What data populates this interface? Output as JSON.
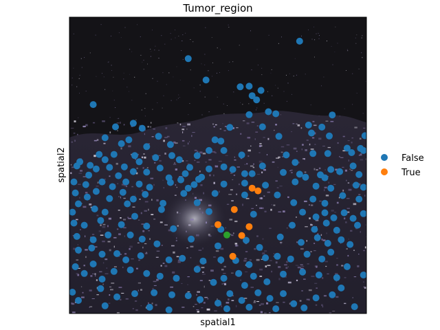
{
  "chart_data": {
    "type": "scatter",
    "title": "Tumor_region",
    "xlabel": "spatial1",
    "ylabel": "spatial2",
    "background": "dark-field tissue image (dark grey, speckled purple/white texture)",
    "legend_position": "right",
    "legend": [
      {
        "label": "False",
        "color": "#1f77b4"
      },
      {
        "label": "True",
        "color": "#ff7f0e"
      }
    ],
    "extra_mark_color": "#2ca02c",
    "xlim": [
      0,
      100
    ],
    "ylim": [
      0,
      100
    ],
    "series": [
      {
        "name": "False",
        "color": "#1f77b4",
        "points": [
          [
            77.5,
            91.9
          ],
          [
            40.0,
            86.0
          ],
          [
            46.0,
            78.8
          ],
          [
            57.5,
            76.5
          ],
          [
            60.5,
            76.7
          ],
          [
            64.5,
            75.3
          ],
          [
            61.5,
            73.5
          ],
          [
            63.0,
            72.1
          ],
          [
            8.0,
            70.5
          ],
          [
            67.0,
            68.1
          ],
          [
            69.5,
            67.4
          ],
          [
            60.5,
            67.1
          ],
          [
            80.5,
            63.6
          ],
          [
            85.0,
            62.9
          ],
          [
            81.5,
            60.9
          ],
          [
            87.5,
            59.9
          ],
          [
            99.5,
            60.0
          ],
          [
            98.0,
            55.7
          ],
          [
            20.0,
            58.6
          ],
          [
            17.5,
            57.3
          ],
          [
            26.0,
            56.3
          ],
          [
            34.0,
            57.0
          ],
          [
            51.0,
            58.2
          ],
          [
            52.0,
            55.0
          ],
          [
            10.0,
            53.7
          ],
          [
            15.0,
            53.7
          ],
          [
            22.0,
            53.3
          ],
          [
            29.0,
            52.6
          ],
          [
            34.5,
            53.3
          ],
          [
            43.0,
            53.3
          ],
          [
            47.0,
            55.0
          ],
          [
            58.0,
            53.5
          ],
          [
            73.0,
            53.5
          ],
          [
            82.0,
            54.0
          ],
          [
            87.0,
            54.0
          ],
          [
            95.0,
            54.3
          ],
          [
            99.0,
            55.0
          ],
          [
            3.5,
            51.2
          ],
          [
            7.0,
            50.0
          ],
          [
            12.0,
            51.9
          ],
          [
            18.5,
            49.5
          ],
          [
            23.5,
            51.2
          ],
          [
            30.5,
            49.1
          ],
          [
            37.0,
            51.9
          ],
          [
            40.5,
            49.3
          ],
          [
            52.0,
            49.5
          ],
          [
            65.0,
            49.8
          ],
          [
            76.0,
            51.0
          ],
          [
            88.0,
            48.6
          ],
          [
            95.5,
            49.8
          ],
          [
            2.5,
            49.8
          ],
          [
            6.5,
            46.7
          ],
          [
            9.0,
            48.8
          ],
          [
            13.5,
            49.3
          ],
          [
            16.5,
            46.5
          ],
          [
            21.5,
            47.9
          ],
          [
            26.0,
            47.7
          ],
          [
            33.5,
            45.8
          ],
          [
            39.0,
            47.2
          ],
          [
            44.5,
            46.0
          ],
          [
            47.0,
            48.8
          ],
          [
            55.0,
            48.6
          ],
          [
            59.0,
            47.2
          ],
          [
            61.5,
            47.2
          ],
          [
            72.0,
            47.6
          ],
          [
            79.5,
            46.0
          ],
          [
            86.0,
            45.8
          ],
          [
            91.0,
            47.9
          ],
          [
            97.5,
            46.9
          ],
          [
            1.5,
            44.4
          ],
          [
            5.5,
            43.5
          ],
          [
            11.0,
            44.4
          ],
          [
            14.5,
            42.8
          ],
          [
            19.0,
            44.4
          ],
          [
            23.5,
            43.7
          ],
          [
            27.0,
            42.6
          ],
          [
            34.0,
            44.2
          ],
          [
            40.0,
            42.3
          ],
          [
            42.0,
            43.5
          ],
          [
            52.0,
            43.7
          ],
          [
            59.0,
            44.0
          ],
          [
            66.0,
            43.3
          ],
          [
            76.0,
            44.4
          ],
          [
            83.0,
            43.0
          ],
          [
            88.0,
            42.3
          ],
          [
            96.5,
            43.3
          ],
          [
            99.0,
            42.6
          ],
          [
            2.0,
            40.7
          ],
          [
            6.0,
            39.3
          ],
          [
            9.0,
            41.2
          ],
          [
            13.5,
            38.8
          ],
          [
            18.0,
            40.9
          ],
          [
            21.5,
            38.6
          ],
          [
            25.5,
            40.2
          ],
          [
            31.5,
            37.2
          ],
          [
            38.5,
            40.5
          ],
          [
            43.0,
            37.4
          ],
          [
            49.0,
            40.5
          ],
          [
            59.0,
            40.0
          ],
          [
            70.0,
            40.0
          ],
          [
            75.5,
            37.4
          ],
          [
            82.0,
            38.6
          ],
          [
            86.0,
            37.2
          ],
          [
            92.0,
            39.8
          ],
          [
            97.5,
            38.6
          ],
          [
            1.0,
            34.2
          ],
          [
            3.0,
            37.0
          ],
          [
            8.5,
            35.3
          ],
          [
            12.0,
            34.2
          ],
          [
            19.5,
            37.0
          ],
          [
            22.0,
            32.8
          ],
          [
            31.0,
            35.1
          ],
          [
            47.0,
            34.4
          ],
          [
            62.0,
            33.5
          ],
          [
            78.5,
            34.2
          ],
          [
            83.0,
            32.6
          ],
          [
            86.0,
            34.0
          ],
          [
            89.0,
            32.3
          ],
          [
            92.5,
            34.0
          ],
          [
            95.5,
            32.1
          ],
          [
            99.0,
            33.7
          ],
          [
            1.5,
            30.5
          ],
          [
            5.0,
            29.8
          ],
          [
            10.5,
            31.4
          ],
          [
            17.5,
            30.0
          ],
          [
            26.0,
            29.5
          ],
          [
            35.0,
            28.6
          ],
          [
            51.0,
            28.4
          ],
          [
            75.0,
            29.8
          ],
          [
            82.5,
            28.4
          ],
          [
            86.5,
            30.5
          ],
          [
            90.0,
            28.1
          ],
          [
            97.0,
            29.8
          ],
          [
            2.5,
            26.0
          ],
          [
            8.0,
            24.9
          ],
          [
            13.0,
            26.5
          ],
          [
            20.5,
            26.5
          ],
          [
            24.5,
            25.1
          ],
          [
            29.5,
            23.5
          ],
          [
            41.0,
            25.1
          ],
          [
            50.0,
            22.8
          ],
          [
            59.5,
            24.7
          ],
          [
            64.0,
            22.3
          ],
          [
            71.0,
            25.8
          ],
          [
            78.0,
            24.0
          ],
          [
            83.5,
            25.6
          ],
          [
            87.0,
            23.7
          ],
          [
            91.5,
            24.9
          ],
          [
            94.5,
            23.3
          ],
          [
            3.0,
            21.4
          ],
          [
            7.5,
            22.1
          ],
          [
            11.0,
            20.0
          ],
          [
            16.0,
            20.2
          ],
          [
            19.0,
            18.1
          ],
          [
            24.0,
            19.5
          ],
          [
            33.5,
            18.1
          ],
          [
            38.0,
            18.6
          ],
          [
            45.0,
            17.7
          ],
          [
            51.0,
            18.1
          ],
          [
            56.0,
            17.9
          ],
          [
            60.5,
            16.5
          ],
          [
            66.0,
            18.8
          ],
          [
            70.0,
            19.3
          ],
          [
            74.5,
            18.4
          ],
          [
            80.0,
            20.0
          ],
          [
            85.0,
            18.4
          ],
          [
            88.0,
            20.7
          ],
          [
            93.5,
            15.8
          ],
          [
            2.0,
            15.8
          ],
          [
            5.0,
            13.5
          ],
          [
            8.0,
            16.7
          ],
          [
            11.0,
            11.6
          ],
          [
            15.0,
            14.2
          ],
          [
            20.5,
            14.7
          ],
          [
            26.0,
            13.5
          ],
          [
            30.5,
            12.6
          ],
          [
            36.0,
            11.9
          ],
          [
            43.0,
            14.9
          ],
          [
            48.5,
            10.5
          ],
          [
            52.0,
            11.9
          ],
          [
            57.0,
            13.5
          ],
          [
            59.0,
            9.5
          ],
          [
            62.0,
            12.6
          ],
          [
            66.5,
            10.7
          ],
          [
            72.0,
            13.3
          ],
          [
            78.5,
            14.0
          ],
          [
            84.0,
            13.0
          ],
          [
            90.0,
            12.1
          ],
          [
            99.0,
            13.0
          ],
          [
            1.0,
            7.2
          ],
          [
            3.0,
            4.4
          ],
          [
            10.5,
            8.4
          ],
          [
            16.0,
            5.6
          ],
          [
            22.0,
            6.7
          ],
          [
            28.5,
            7.0
          ],
          [
            34.5,
            6.3
          ],
          [
            40.0,
            6.0
          ],
          [
            44.0,
            4.7
          ],
          [
            50.0,
            3.5
          ],
          [
            54.0,
            6.7
          ],
          [
            58.0,
            4.4
          ],
          [
            63.5,
            7.0
          ],
          [
            67.5,
            5.1
          ],
          [
            72.0,
            6.7
          ],
          [
            75.5,
            3.3
          ],
          [
            83.0,
            5.3
          ],
          [
            88.5,
            6.3
          ],
          [
            91.5,
            8.6
          ],
          [
            12.0,
            2.6
          ],
          [
            27.0,
            2.1
          ],
          [
            33.5,
            1.2
          ],
          [
            53.0,
            1.6
          ],
          [
            60.5,
            2.1
          ],
          [
            69.5,
            1.6
          ],
          [
            79.0,
            1.9
          ],
          [
            96.0,
            2.3
          ],
          [
            12.0,
            59.3
          ],
          [
            15.5,
            63.0
          ],
          [
            21.5,
            64.2
          ],
          [
            24.5,
            62.5
          ],
          [
            30.0,
            59.8
          ],
          [
            49.0,
            58.6
          ],
          [
            54.0,
            62.8
          ],
          [
            65.0,
            63.0
          ],
          [
            88.5,
            67.0
          ],
          [
            93.5,
            55.8
          ],
          [
            70.5,
            59.8
          ],
          [
            77.5,
            47.0
          ],
          [
            84.5,
            46.8
          ],
          [
            43.5,
            45.3
          ],
          [
            37.5,
            45.1
          ]
        ]
      },
      {
        "name": "True",
        "color": "#ff7f0e",
        "points": [
          [
            61.5,
            42.3
          ],
          [
            63.5,
            41.4
          ],
          [
            55.5,
            35.1
          ],
          [
            50.0,
            30.0
          ],
          [
            60.5,
            29.3
          ],
          [
            58.0,
            26.3
          ],
          [
            55.0,
            19.3
          ]
        ]
      }
    ],
    "extra_points": [
      [
        53.0,
        26.5
      ]
    ]
  }
}
